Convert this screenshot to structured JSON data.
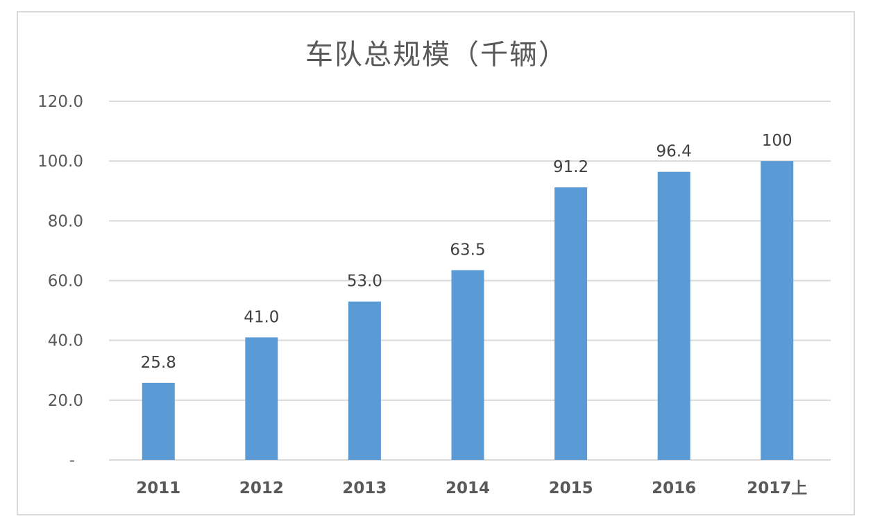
{
  "chart_data": {
    "type": "bar",
    "title": "车队总规模（千辆）",
    "categories": [
      "2011",
      "2012",
      "2013",
      "2014",
      "2015",
      "2016",
      "2017上"
    ],
    "values": [
      25.8,
      41.0,
      53.0,
      63.5,
      91.2,
      96.4,
      100
    ],
    "data_labels": [
      "25.8",
      "41.0",
      "53.0",
      "63.5",
      "91.2",
      "96.4",
      "100"
    ],
    "y_ticks": [
      {
        "value": 0,
        "label": "-"
      },
      {
        "value": 20,
        "label": "20.0"
      },
      {
        "value": 40,
        "label": "40.0"
      },
      {
        "value": 60,
        "label": "60.0"
      },
      {
        "value": 80,
        "label": "80.0"
      },
      {
        "value": 100,
        "label": "100.0"
      },
      {
        "value": 120,
        "label": "120.0"
      }
    ],
    "ylim": [
      0,
      120
    ],
    "grid": true,
    "legend": "none",
    "colors": {
      "bar": "#5b9bd5",
      "grid": "#d9d9d9",
      "text": "#595959"
    }
  }
}
